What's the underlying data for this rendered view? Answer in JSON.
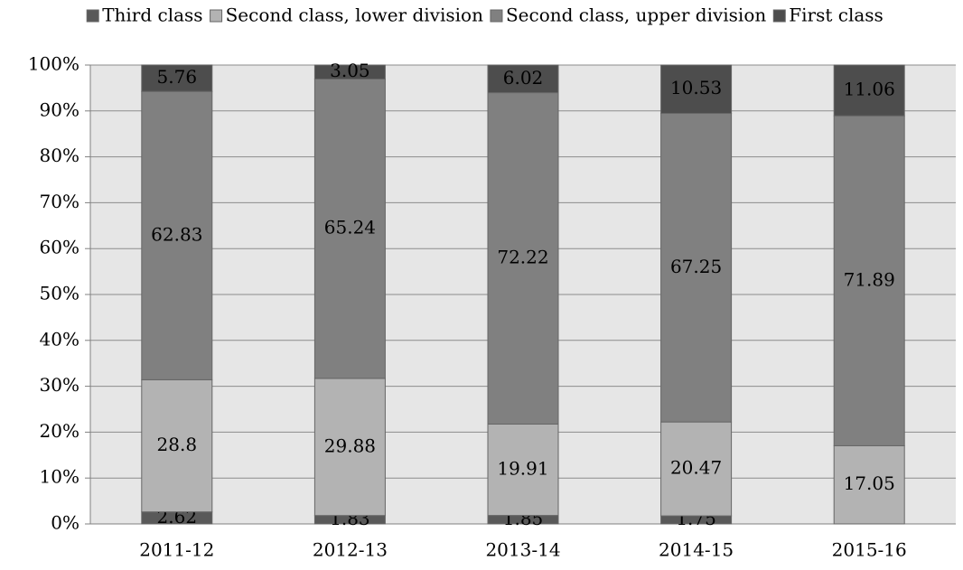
{
  "chart_data": {
    "type": "stacked_bar_100",
    "categories": [
      "2011-12",
      "2012-13",
      "2013-14",
      "2014-15",
      "2015-16"
    ],
    "series": [
      {
        "name": "Third class",
        "color": "#595959",
        "values": [
          2.62,
          1.83,
          1.85,
          1.75,
          null
        ]
      },
      {
        "name": "Second class, lower division",
        "color": "#b3b3b3",
        "values": [
          28.8,
          29.88,
          19.91,
          20.47,
          17.05
        ]
      },
      {
        "name": "Second class, upper division",
        "color": "#808080",
        "values": [
          62.83,
          65.24,
          72.22,
          67.25,
          71.89
        ]
      },
      {
        "name": "First class",
        "color": "#4d4d4d",
        "values": [
          5.76,
          3.05,
          6.02,
          10.53,
          11.06
        ]
      }
    ],
    "ylim": [
      0,
      100
    ],
    "yticks": [
      {
        "value": 0,
        "label": "0%"
      },
      {
        "value": 10,
        "label": "10%"
      },
      {
        "value": 20,
        "label": "20%"
      },
      {
        "value": 30,
        "label": "30%"
      },
      {
        "value": 40,
        "label": "40%"
      },
      {
        "value": 50,
        "label": "50%"
      },
      {
        "value": 60,
        "label": "60%"
      },
      {
        "value": 70,
        "label": "70%"
      },
      {
        "value": 80,
        "label": "80%"
      },
      {
        "value": 90,
        "label": "90%"
      },
      {
        "value": 100,
        "label": "100%"
      }
    ],
    "grid": true,
    "legend": "top"
  }
}
